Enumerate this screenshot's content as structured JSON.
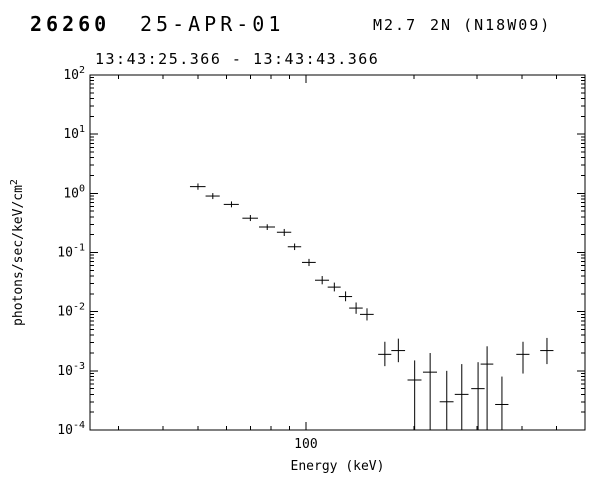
{
  "header": {
    "flare_number": "26260",
    "date": "25-APR-01",
    "goes_class": "M2.7",
    "position": "2N (N18W09)",
    "time_interval": "13:43:25.366 - 13:43:43.366"
  },
  "colors": {
    "foreground": "#000000",
    "background": "#ffffff"
  },
  "chart_data": {
    "type": "scatter",
    "title": "",
    "xlabel": "Energy (keV)",
    "ylabel": "photons/sec/keV/cm^2",
    "xscale": "log",
    "yscale": "log",
    "xlim": [
      25,
      600
    ],
    "ylim": [
      0.0001,
      100
    ],
    "grid": false,
    "legend": "none",
    "x_major_ticks": [
      100
    ],
    "x_major_tick_labels": [
      "100"
    ],
    "x_minor_ticks": [
      30,
      40,
      50,
      60,
      70,
      80,
      90,
      200,
      300,
      400,
      500
    ],
    "y_major_exponents": [
      2,
      1,
      0,
      -1,
      -2,
      -3,
      -4
    ],
    "points": [
      {
        "e": 50,
        "ew": 2.5,
        "f": 1.3,
        "flo": 1.15,
        "fhi": 1.47
      },
      {
        "e": 55,
        "ew": 2.5,
        "f": 0.9,
        "flo": 0.8,
        "fhi": 1.01
      },
      {
        "e": 62,
        "ew": 3,
        "f": 0.65,
        "flo": 0.58,
        "fhi": 0.73
      },
      {
        "e": 70,
        "ew": 3.5,
        "f": 0.38,
        "flo": 0.34,
        "fhi": 0.43
      },
      {
        "e": 78,
        "ew": 4,
        "f": 0.27,
        "flo": 0.24,
        "fhi": 0.3
      },
      {
        "e": 87,
        "ew": 4,
        "f": 0.22,
        "flo": 0.19,
        "fhi": 0.25
      },
      {
        "e": 93,
        "ew": 4,
        "f": 0.125,
        "flo": 0.11,
        "fhi": 0.142
      },
      {
        "e": 102,
        "ew": 4.5,
        "f": 0.068,
        "flo": 0.059,
        "fhi": 0.078
      },
      {
        "e": 111,
        "ew": 5,
        "f": 0.034,
        "flo": 0.029,
        "fhi": 0.04
      },
      {
        "e": 120,
        "ew": 5,
        "f": 0.026,
        "flo": 0.022,
        "fhi": 0.031
      },
      {
        "e": 129,
        "ew": 5.5,
        "f": 0.018,
        "flo": 0.015,
        "fhi": 0.022
      },
      {
        "e": 138,
        "ew": 6,
        "f": 0.0115,
        "flo": 0.0092,
        "fhi": 0.0143
      },
      {
        "e": 148,
        "ew": 6.5,
        "f": 0.009,
        "flo": 0.0071,
        "fhi": 0.0114
      },
      {
        "e": 166,
        "ew": 7,
        "f": 0.0019,
        "flo": 0.0012,
        "fhi": 0.0031
      },
      {
        "e": 181,
        "ew": 8,
        "f": 0.0022,
        "flo": 0.0014,
        "fhi": 0.0035
      },
      {
        "e": 201,
        "ew": 9,
        "f": 0.0007,
        "flo": 0.0001,
        "fhi": 0.0015
      },
      {
        "e": 222,
        "ew": 10,
        "f": 0.00095,
        "flo": 0.0001,
        "fhi": 0.002
      },
      {
        "e": 247,
        "ew": 11,
        "f": 0.0003,
        "flo": 0.0001,
        "fhi": 0.001
      },
      {
        "e": 272,
        "ew": 12,
        "f": 0.0004,
        "flo": 0.0001,
        "fhi": 0.0013
      },
      {
        "e": 302,
        "ew": 13,
        "f": 0.0005,
        "flo": 0.0001,
        "fhi": 0.0014
      },
      {
        "e": 320,
        "ew": 13,
        "f": 0.0013,
        "flo": 0.0001,
        "fhi": 0.0026
      },
      {
        "e": 352,
        "ew": 15,
        "f": 0.00027,
        "flo": 0.0001,
        "fhi": 0.0008
      },
      {
        "e": 403,
        "ew": 17,
        "f": 0.0019,
        "flo": 0.0009,
        "fhi": 0.0031
      },
      {
        "e": 470,
        "ew": 20,
        "f": 0.0022,
        "flo": 0.0013,
        "fhi": 0.0036
      }
    ]
  }
}
